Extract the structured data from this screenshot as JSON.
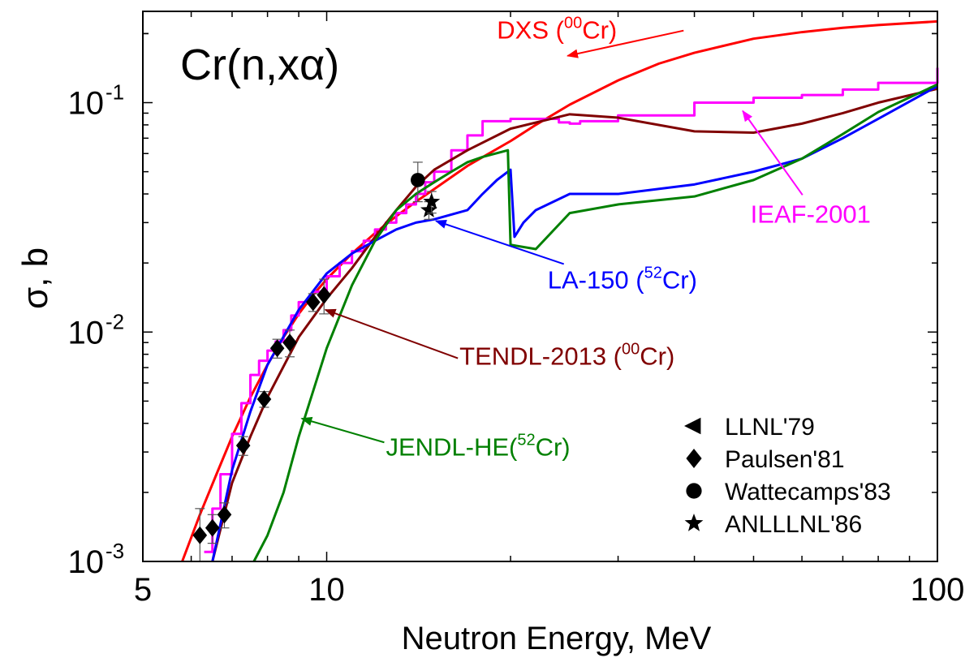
{
  "chart_data": {
    "type": "line",
    "title": "Cr(n,xα)",
    "xlabel": "Neutron Energy,   MeV",
    "ylabel": "σ,  b",
    "x_scale": "log",
    "y_scale": "log",
    "xlim": [
      5,
      100
    ],
    "ylim": [
      0.001,
      0.25
    ],
    "grid": false,
    "x_ticks": [
      {
        "value": 5,
        "label": "5"
      },
      {
        "value": 10,
        "label": "10"
      },
      {
        "value": 100,
        "label": "100"
      }
    ],
    "y_ticks": [
      {
        "value": 0.001,
        "base": "10",
        "exp": "-3"
      },
      {
        "value": 0.01,
        "base": "10",
        "exp": "-2"
      },
      {
        "value": 0.1,
        "base": "10",
        "exp": "-1"
      }
    ],
    "series": [
      {
        "name": "DXS (⁰⁰Cr)",
        "color": "#ff0000",
        "style": "line",
        "x": [
          5.8,
          6.2,
          6.6,
          7.0,
          7.5,
          8.0,
          8.5,
          9.0,
          9.5,
          10,
          11,
          12,
          13,
          14,
          15,
          17,
          20,
          22,
          25,
          30,
          35,
          40,
          50,
          60,
          70,
          80,
          100
        ],
        "y": [
          0.001,
          0.0016,
          0.0024,
          0.0035,
          0.0052,
          0.0072,
          0.0095,
          0.012,
          0.0145,
          0.017,
          0.022,
          0.027,
          0.032,
          0.037,
          0.042,
          0.053,
          0.068,
          0.08,
          0.098,
          0.125,
          0.148,
          0.165,
          0.19,
          0.203,
          0.212,
          0.218,
          0.226
        ]
      },
      {
        "name": "IEAF-2001",
        "color": "#ff00ff",
        "style": "step",
        "x": [
          6.3,
          6.5,
          6.7,
          7.0,
          7.25,
          7.5,
          7.75,
          8.0,
          8.25,
          8.5,
          8.75,
          9.0,
          9.5,
          10.0,
          10.5,
          11.0,
          11.5,
          12.0,
          12.5,
          13.0,
          13.5,
          14.0,
          14.5,
          15.0,
          16.0,
          17.0,
          18.0,
          20.0,
          22.0,
          24.0,
          25.0,
          26.0,
          30.0,
          40.0,
          50.0,
          60.0,
          70.0,
          80.0,
          100.0
        ],
        "y": [
          0.0011,
          0.0017,
          0.0024,
          0.0036,
          0.0049,
          0.0065,
          0.0075,
          0.0083,
          0.0091,
          0.0102,
          0.0118,
          0.0135,
          0.015,
          0.0175,
          0.02,
          0.0225,
          0.025,
          0.028,
          0.03,
          0.033,
          0.036,
          0.04,
          0.045,
          0.05,
          0.062,
          0.072,
          0.083,
          0.085,
          0.085,
          0.082,
          0.081,
          0.083,
          0.088,
          0.1,
          0.105,
          0.108,
          0.114,
          0.122,
          0.142
        ]
      },
      {
        "name": "TENDL-2013 (⁰⁰Cr)",
        "color": "#800000",
        "style": "line",
        "x": [
          6.5,
          7.0,
          7.5,
          8.0,
          9.0,
          10,
          11,
          12,
          13,
          14,
          15,
          17,
          20,
          25,
          30,
          40,
          50,
          60,
          70,
          80,
          100
        ],
        "y": [
          0.001,
          0.0022,
          0.0035,
          0.0052,
          0.0095,
          0.014,
          0.019,
          0.026,
          0.034,
          0.043,
          0.051,
          0.062,
          0.077,
          0.089,
          0.086,
          0.075,
          0.074,
          0.081,
          0.09,
          0.1,
          0.115
        ]
      },
      {
        "name": "LA-150 (⁵²Cr)",
        "color": "#0000ff",
        "style": "line",
        "x": [
          6.5,
          7.0,
          7.5,
          8.0,
          9.0,
          10,
          11,
          12,
          13,
          14,
          15,
          17,
          18,
          19,
          20,
          20.3,
          21,
          22,
          25,
          30,
          40,
          50,
          60,
          70,
          80,
          100
        ],
        "y": [
          0.001,
          0.0025,
          0.0045,
          0.0072,
          0.0125,
          0.018,
          0.022,
          0.025,
          0.028,
          0.03,
          0.031,
          0.034,
          0.04,
          0.046,
          0.051,
          0.026,
          0.03,
          0.034,
          0.04,
          0.04,
          0.044,
          0.05,
          0.057,
          0.07,
          0.085,
          0.118
        ]
      },
      {
        "name": "JENDL-HE(⁵²Cr)",
        "color": "#008000",
        "style": "line",
        "x": [
          7.6,
          8.0,
          8.5,
          9.0,
          10,
          11,
          12,
          13,
          14,
          15,
          16,
          17,
          18,
          19.8,
          20.0,
          22,
          25,
          30,
          40,
          50,
          60,
          70,
          80,
          100
        ],
        "y": [
          0.001,
          0.0013,
          0.002,
          0.0035,
          0.0085,
          0.016,
          0.025,
          0.034,
          0.04,
          0.045,
          0.05,
          0.055,
          0.058,
          0.062,
          0.024,
          0.023,
          0.033,
          0.036,
          0.039,
          0.046,
          0.057,
          0.073,
          0.091,
          0.12
        ]
      }
    ],
    "experimental": [
      {
        "name": "LLNL'79",
        "marker": "triangle-left",
        "points": []
      },
      {
        "name": "Paulsen'81",
        "marker": "diamond",
        "points": [
          {
            "x": 6.2,
            "y": 0.0013,
            "err": 0.0004
          },
          {
            "x": 6.5,
            "y": 0.0014,
            "err": 0.0002
          },
          {
            "x": 6.8,
            "y": 0.0016,
            "err": 0.0002
          },
          {
            "x": 7.3,
            "y": 0.0032,
            "err": 0.0003
          },
          {
            "x": 7.9,
            "y": 0.0051,
            "err": 0.0004
          },
          {
            "x": 8.3,
            "y": 0.0085,
            "err": 0.0008
          },
          {
            "x": 8.7,
            "y": 0.009,
            "err": 0.0012
          },
          {
            "x": 9.5,
            "y": 0.0135,
            "err": 0.0012
          },
          {
            "x": 9.9,
            "y": 0.0145,
            "err": 0.0025
          }
        ]
      },
      {
        "name": "Wattecamps'83",
        "marker": "circle",
        "points": [
          {
            "x": 14.1,
            "y": 0.046,
            "err": 0.009
          }
        ]
      },
      {
        "name": "ANLLLNL'86",
        "marker": "star",
        "points": [
          {
            "x": 14.7,
            "y": 0.034,
            "err": 0.003
          },
          {
            "x": 14.85,
            "y": 0.037,
            "err": 0.004
          }
        ]
      }
    ],
    "annotations": [
      {
        "series": "DXS (⁰⁰Cr)",
        "parts": [
          "DXS (",
          "00",
          "Cr)"
        ],
        "color": "#ff0000",
        "text_at": [
          19.0,
          0.19
        ],
        "arrow_to": [
          24.8,
          0.16
        ]
      },
      {
        "series": "IEAF-2001",
        "parts": [
          "IEAF-2001",
          "",
          ""
        ],
        "color": "#ff00ff",
        "text_at": [
          62.0,
          0.03
        ],
        "arrow_to": [
          48.0,
          0.092
        ]
      },
      {
        "series": "LA-150 (⁵²Cr)",
        "parts": [
          "LA-150 (",
          "52",
          "Cr)"
        ],
        "color": "#0000ff",
        "text_at": [
          23.0,
          0.0155
        ],
        "arrow_to": [
          15.1,
          0.0305
        ]
      },
      {
        "series": "TENDL-2013 (⁰⁰Cr)",
        "parts": [
          "TENDL-2013 (",
          "00",
          "Cr)"
        ],
        "color": "#800000",
        "text_at": [
          16.5,
          0.0072
        ],
        "arrow_to": [
          9.95,
          0.0125
        ]
      },
      {
        "series": "JENDL-HE(⁵²Cr)",
        "parts": [
          "JENDL-HE(",
          "52",
          "Cr)"
        ],
        "color": "#008000",
        "text_at": [
          12.5,
          0.0029
        ],
        "arrow_to": [
          9.1,
          0.0042
        ]
      }
    ],
    "legend": {
      "placement": "bottom-right"
    }
  }
}
